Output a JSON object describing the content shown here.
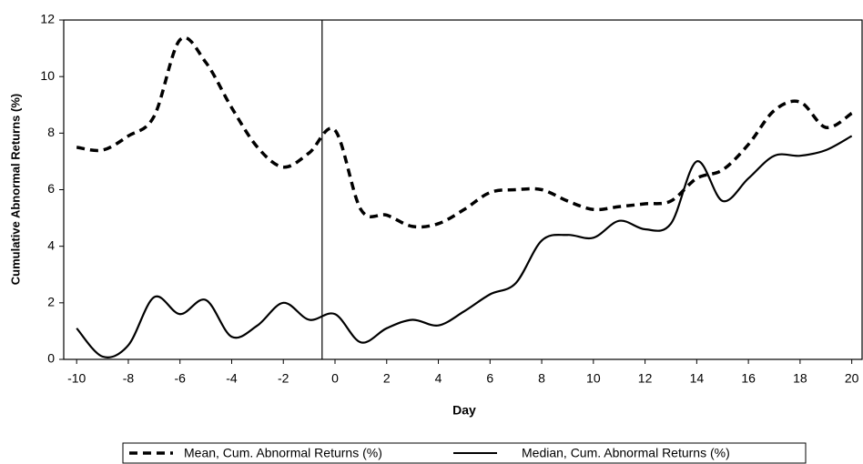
{
  "chart_data": {
    "type": "line",
    "x_label": "Day",
    "y_label": "Cumulative Abnormal Returns (%)",
    "x": [
      -10,
      -9,
      -8,
      -7,
      -6,
      -5,
      -4,
      -3,
      -2,
      -1,
      0,
      1,
      2,
      3,
      4,
      5,
      6,
      7,
      8,
      9,
      10,
      11,
      12,
      13,
      14,
      15,
      16,
      17,
      18,
      19,
      20
    ],
    "series": [
      {
        "name": "Mean, Cum. Abnormal Returns (%)",
        "color": "#000000",
        "dash": true,
        "values": [
          7.5,
          7.4,
          7.9,
          8.6,
          11.3,
          10.5,
          8.9,
          7.5,
          6.8,
          7.3,
          8.1,
          5.3,
          5.1,
          4.7,
          4.8,
          5.3,
          5.9,
          6.0,
          6.0,
          5.6,
          5.3,
          5.4,
          5.5,
          5.6,
          6.4,
          6.7,
          7.6,
          8.8,
          9.1,
          8.2,
          8.7
        ]
      },
      {
        "name": "Median, Cum. Abnormal Returns (%)",
        "color": "#000000",
        "dash": false,
        "values": [
          1.1,
          0.1,
          0.5,
          2.2,
          1.6,
          2.1,
          0.8,
          1.2,
          2.0,
          1.4,
          1.6,
          0.6,
          1.1,
          1.4,
          1.2,
          1.7,
          2.3,
          2.7,
          4.2,
          4.4,
          4.3,
          4.9,
          4.6,
          4.8,
          7.0,
          5.6,
          6.4,
          7.2,
          7.2,
          7.4,
          7.9
        ]
      }
    ],
    "event_line": -0.5,
    "xlim": [
      -10.5,
      20.4
    ],
    "xticks": [
      -10,
      -8,
      -6,
      -4,
      -2,
      0,
      2,
      4,
      6,
      8,
      10,
      12,
      14,
      16,
      18,
      20
    ],
    "ylim": [
      0,
      12
    ],
    "yticks": [
      0,
      2,
      4,
      6,
      8,
      10,
      12
    ]
  }
}
